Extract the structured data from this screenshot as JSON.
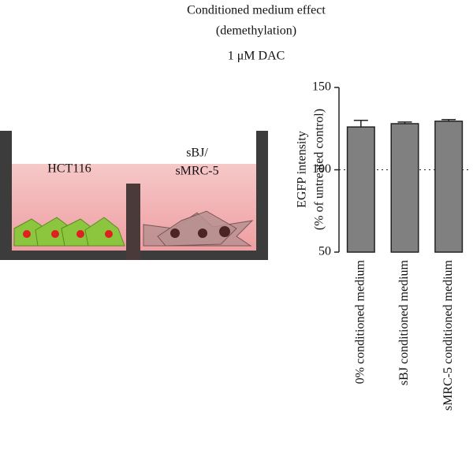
{
  "chart_data": {
    "type": "bar",
    "title": [
      "Conditioned medium effect",
      "(demethylation)"
    ],
    "subtitle": "1 μM DAC",
    "ylabel": [
      "EGFP intensity",
      "(% of untreated control)"
    ],
    "categories": [
      "0% conditioned medium",
      "sBJ conditioned medium",
      "sMRC-5 conditioned medium"
    ],
    "values": [
      126,
      128,
      129.5
    ],
    "errors": [
      4,
      1,
      1
    ],
    "color": "#808080",
    "ylim": [
      50,
      150
    ],
    "yticks": [
      50,
      100,
      150
    ],
    "reference_line": 100
  },
  "diagram": {
    "left_label": "HCT116",
    "right_label": [
      "sBJ/",
      "sMRC-5"
    ]
  }
}
